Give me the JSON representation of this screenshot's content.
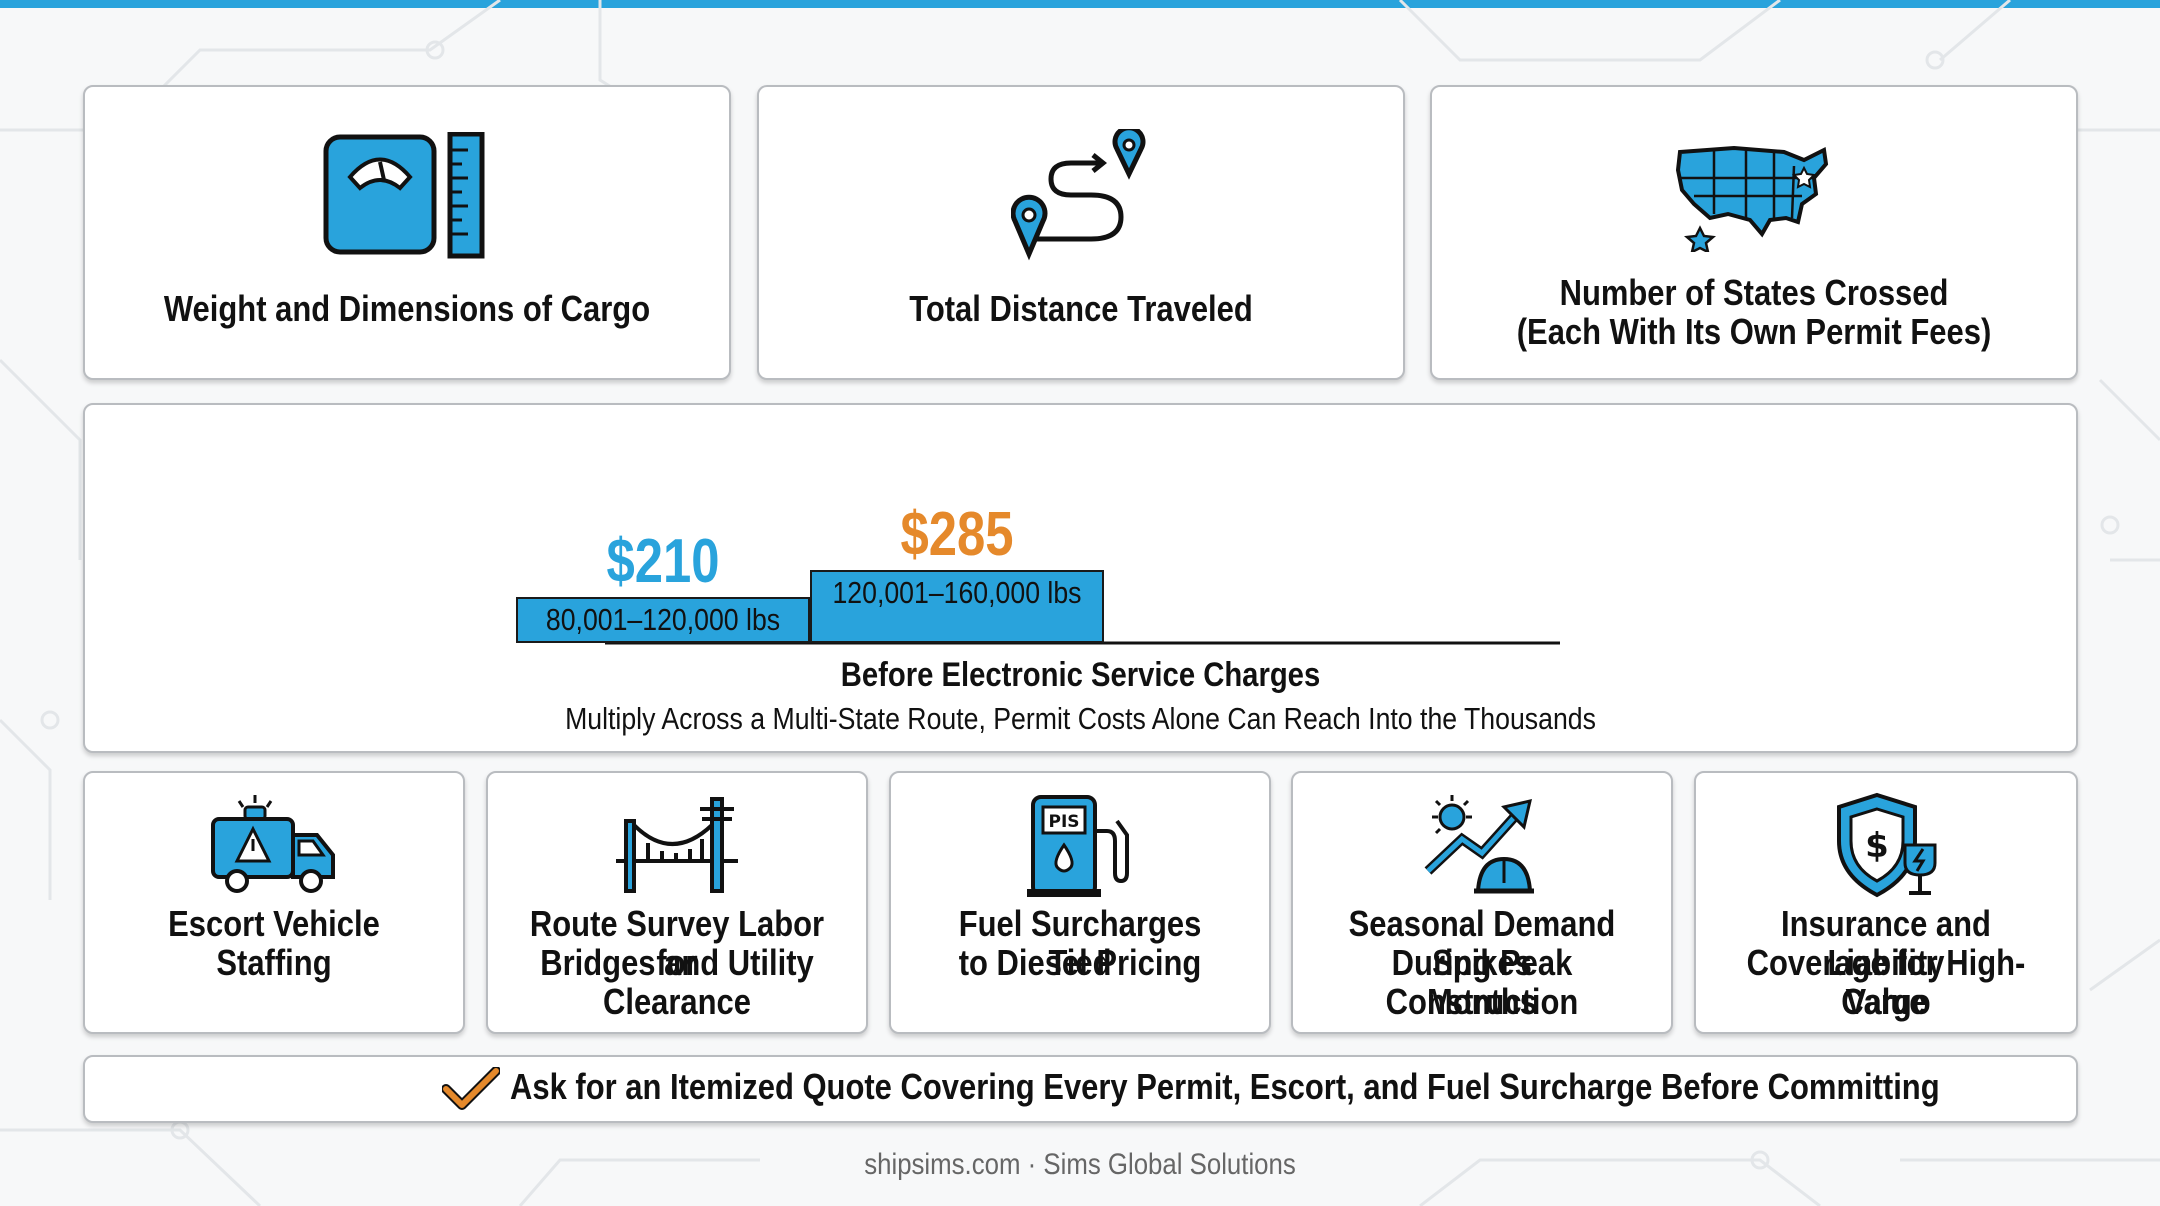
{
  "factors_top": [
    {
      "icon": "scale-ruler-icon",
      "label": "Weight and Dimensions of Cargo"
    },
    {
      "icon": "route-pins-icon",
      "label": "Total Distance Traveled"
    },
    {
      "icon": "usa-map-icon",
      "label_line1": "Number of States Crossed",
      "label_line2": "(Each With Its Own Permit Fees)"
    }
  ],
  "chart_data": {
    "type": "bar",
    "categories": [
      "80,001–120,000 lbs",
      "120,001–160,000 lbs"
    ],
    "values": [
      210,
      285
    ],
    "value_labels": [
      "$210",
      "$285"
    ],
    "value_colors": [
      "#29a3dc",
      "#e5892b"
    ],
    "caption": "Before Electronic Service Charges",
    "note": "Multiply Across a Multi-State Route, Permit Costs Alone Can Reach Into the Thousands"
  },
  "factors_bottom": [
    {
      "icon": "escort-truck-icon",
      "line1": "Escort Vehicle",
      "line2": "Staffing",
      "line3": ""
    },
    {
      "icon": "bridge-utility-icon",
      "line1": "Route Survey Labor for",
      "line2": "Bridges and Utility",
      "line3": "Clearance"
    },
    {
      "icon": "fuel-pump-icon",
      "line1": "Fuel Surcharges Tied",
      "line2": "to Diesel Pricing",
      "line3": ""
    },
    {
      "icon": "demand-spike-icon",
      "line1": "Seasonal Demand Spikes",
      "line2": "During Peak Construction",
      "line3": "Months"
    },
    {
      "icon": "insurance-shield-icon",
      "line1": "Insurance and Liability",
      "line2": "Coverage for High-Value",
      "line3": "Cargo"
    }
  ],
  "cta": {
    "icon": "checkmark-icon",
    "text": "Ask for an Itemized Quote Covering Every Permit, Escort, and Fuel Surcharge Before Committing"
  },
  "footer": {
    "text": "shipsims.com · Sims Global Solutions"
  },
  "colors": {
    "accent": "#29a3dc",
    "highlight": "#e5892b"
  }
}
